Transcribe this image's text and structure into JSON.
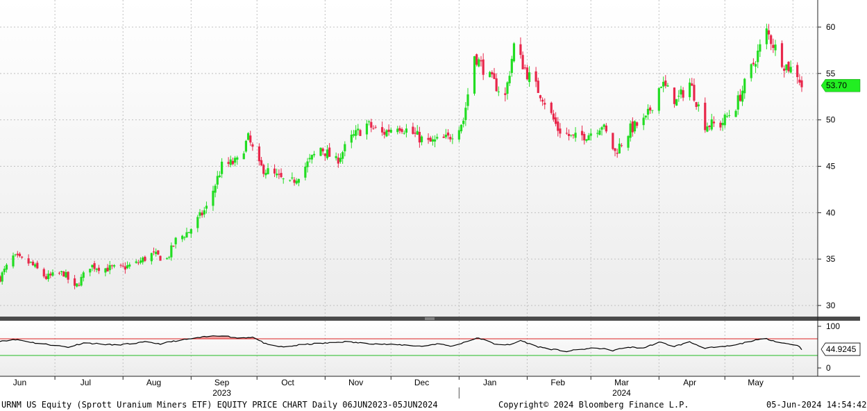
{
  "footer": {
    "left": "URNM US Equity (Sprott Uranium Miners ETF) EQUITY PRICE CHART  Daily 06JUN2023-05JUN2024",
    "center": "Copyright© 2024 Bloomberg Finance L.P.",
    "right": "05-Jun-2024 14:54:42"
  },
  "colors": {
    "up": "#22dd22",
    "down": "#e8274b",
    "last_price_tag": "#22ee22",
    "rsi_line": "#000000",
    "rsi_overbought_line": "#dd2222",
    "rsi_oversold_line": "#22bb22",
    "rsi_overbought_fill": "#f2a0a0",
    "grid": "#c0c0c0"
  },
  "chart_data": [
    {
      "type": "candlestick",
      "name": "URNM US Equity price",
      "y_ticks": [
        30,
        35,
        40,
        45,
        50,
        55,
        60
      ],
      "ylim": [
        28.8,
        63
      ],
      "last_price": 53.7,
      "last_price_label": "53.70",
      "grid": true,
      "x_months": [
        {
          "label": "Jun",
          "date": "2023-06-15"
        },
        {
          "label": "Jul",
          "date": "2023-07-15"
        },
        {
          "label": "Aug",
          "date": "2023-08-15"
        },
        {
          "label": "Sep",
          "date": "2023-09-15"
        },
        {
          "label": "Oct",
          "date": "2023-10-15"
        },
        {
          "label": "Nov",
          "date": "2023-11-15"
        },
        {
          "label": "Dec",
          "date": "2023-12-15"
        },
        {
          "label": "Jan",
          "date": "2024-01-15"
        },
        {
          "label": "Feb",
          "date": "2024-02-15"
        },
        {
          "label": "Mar",
          "date": "2024-03-15"
        },
        {
          "label": "Apr",
          "date": "2024-04-15"
        },
        {
          "label": "May",
          "date": "2024-05-15"
        }
      ],
      "year_labels": [
        {
          "label": "2023",
          "date": "2023-09-15"
        },
        {
          "label": "2024",
          "date": "2024-03-15"
        }
      ],
      "close_points": [
        [
          "2023-06-06",
          33.0
        ],
        [
          "2023-06-12",
          35.2
        ],
        [
          "2023-06-20",
          34.5
        ],
        [
          "2023-06-27",
          33.0
        ],
        [
          "2023-07-05",
          33.5
        ],
        [
          "2023-07-10",
          31.8
        ],
        [
          "2023-07-17",
          34.3
        ],
        [
          "2023-07-24",
          34.0
        ],
        [
          "2023-07-31",
          34.0
        ],
        [
          "2023-08-07",
          34.5
        ],
        [
          "2023-08-14",
          35.5
        ],
        [
          "2023-08-21",
          35.0
        ],
        [
          "2023-08-25",
          37.0
        ],
        [
          "2023-08-31",
          38.0
        ],
        [
          "2023-09-08",
          40.5
        ],
        [
          "2023-09-15",
          45.0
        ],
        [
          "2023-09-22",
          45.5
        ],
        [
          "2023-09-27",
          48.0
        ],
        [
          "2023-10-02",
          45.0
        ],
        [
          "2023-10-09",
          44.0
        ],
        [
          "2023-10-16",
          43.0
        ],
        [
          "2023-10-23",
          45.0
        ],
        [
          "2023-10-30",
          47.0
        ],
        [
          "2023-11-06",
          45.5
        ],
        [
          "2023-11-13",
          48.0
        ],
        [
          "2023-11-20",
          49.5
        ],
        [
          "2023-11-27",
          48.5
        ],
        [
          "2023-12-04",
          49.5
        ],
        [
          "2023-12-11",
          48.5
        ],
        [
          "2023-12-18",
          47.5
        ],
        [
          "2023-12-27",
          48.0
        ],
        [
          "2024-01-03",
          50.0
        ],
        [
          "2024-01-08",
          57.0
        ],
        [
          "2024-01-15",
          54.5
        ],
        [
          "2024-01-22",
          52.5
        ],
        [
          "2024-01-26",
          58.0
        ],
        [
          "2024-02-01",
          55.0
        ],
        [
          "2024-02-08",
          52.5
        ],
        [
          "2024-02-15",
          49.0
        ],
        [
          "2024-02-22",
          48.0
        ],
        [
          "2024-02-29",
          48.5
        ],
        [
          "2024-03-06",
          49.5
        ],
        [
          "2024-03-12",
          46.5
        ],
        [
          "2024-03-19",
          49.0
        ],
        [
          "2024-03-26",
          50.0
        ],
        [
          "2024-04-02",
          54.0
        ],
        [
          "2024-04-09",
          52.0
        ],
        [
          "2024-04-15",
          54.0
        ],
        [
          "2024-04-22",
          49.5
        ],
        [
          "2024-04-29",
          49.5
        ],
        [
          "2024-05-06",
          51.5
        ],
        [
          "2024-05-13",
          55.5
        ],
        [
          "2024-05-20",
          59.5
        ],
        [
          "2024-05-28",
          56.0
        ],
        [
          "2024-06-03",
          55.0
        ],
        [
          "2024-06-05",
          53.7
        ]
      ]
    },
    {
      "type": "line",
      "name": "RSI",
      "y_ticks": [
        0,
        100
      ],
      "overbought": 70,
      "oversold": 30,
      "last_value": 44.9245,
      "last_value_label": "44.9245",
      "points": [
        [
          "2023-06-06",
          65
        ],
        [
          "2023-06-14",
          68
        ],
        [
          "2023-06-22",
          60
        ],
        [
          "2023-06-30",
          55
        ],
        [
          "2023-07-07",
          50
        ],
        [
          "2023-07-14",
          60
        ],
        [
          "2023-07-21",
          58
        ],
        [
          "2023-07-28",
          55
        ],
        [
          "2023-08-04",
          58
        ],
        [
          "2023-08-11",
          62
        ],
        [
          "2023-08-18",
          58
        ],
        [
          "2023-08-25",
          65
        ],
        [
          "2023-09-01",
          70
        ],
        [
          "2023-09-08",
          75
        ],
        [
          "2023-09-15",
          78
        ],
        [
          "2023-09-22",
          72
        ],
        [
          "2023-09-29",
          74
        ],
        [
          "2023-10-06",
          55
        ],
        [
          "2023-10-13",
          50
        ],
        [
          "2023-10-20",
          55
        ],
        [
          "2023-10-27",
          58
        ],
        [
          "2023-11-03",
          60
        ],
        [
          "2023-11-10",
          63
        ],
        [
          "2023-11-17",
          60
        ],
        [
          "2023-11-24",
          58
        ],
        [
          "2023-12-01",
          56
        ],
        [
          "2023-12-08",
          55
        ],
        [
          "2023-12-15",
          52
        ],
        [
          "2023-12-22",
          58
        ],
        [
          "2023-12-29",
          52
        ],
        [
          "2024-01-05",
          65
        ],
        [
          "2024-01-10",
          72
        ],
        [
          "2024-01-17",
          58
        ],
        [
          "2024-01-24",
          55
        ],
        [
          "2024-01-29",
          66
        ],
        [
          "2024-02-05",
          52
        ],
        [
          "2024-02-12",
          45
        ],
        [
          "2024-02-19",
          40
        ],
        [
          "2024-02-26",
          45
        ],
        [
          "2024-03-04",
          48
        ],
        [
          "2024-03-11",
          42
        ],
        [
          "2024-03-18",
          50
        ],
        [
          "2024-03-25",
          48
        ],
        [
          "2024-04-01",
          62
        ],
        [
          "2024-04-08",
          52
        ],
        [
          "2024-04-15",
          62
        ],
        [
          "2024-04-22",
          48
        ],
        [
          "2024-04-29",
          50
        ],
        [
          "2024-05-06",
          55
        ],
        [
          "2024-05-13",
          65
        ],
        [
          "2024-05-20",
          70
        ],
        [
          "2024-05-27",
          60
        ],
        [
          "2024-06-03",
          55
        ],
        [
          "2024-06-05",
          44.9
        ]
      ]
    }
  ]
}
